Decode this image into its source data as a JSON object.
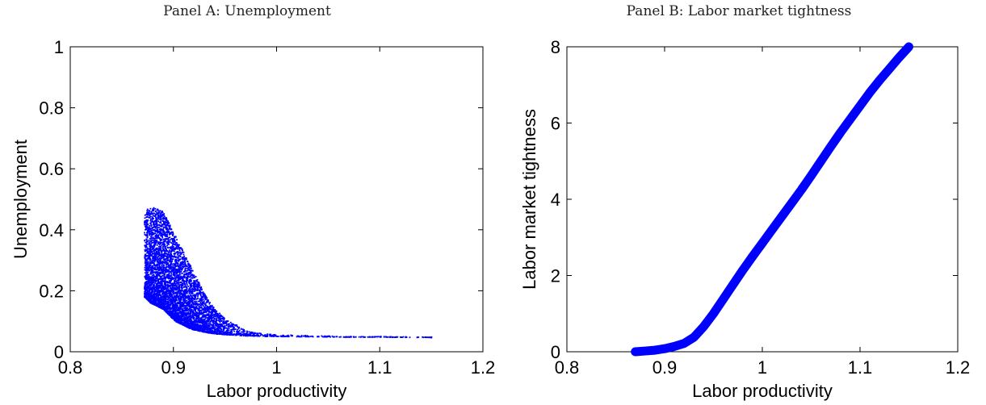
{
  "chart_data": [
    {
      "type": "scatter",
      "title": "Panel A: Unemployment",
      "xlabel": "Labor productivity",
      "ylabel": "Unemployment",
      "xlim": [
        0.8,
        1.2
      ],
      "ylim": [
        0,
        1
      ],
      "xticks": [
        "0.8",
        "0.9",
        "1",
        "1.1",
        "1.2"
      ],
      "yticks": [
        "0",
        "0.2",
        "0.4",
        "0.6",
        "0.8",
        "1"
      ],
      "color": "#0000ff",
      "grid": false,
      "series": [
        {
          "x": [
            0.872,
            0.875,
            0.878,
            0.881,
            0.884,
            0.887,
            0.89,
            0.893,
            0.896,
            0.899,
            0.902,
            0.905,
            0.908,
            0.911,
            0.914,
            0.917,
            0.92,
            0.923,
            0.926,
            0.929,
            0.932,
            0.935,
            0.938,
            0.941,
            0.944,
            0.947,
            0.95,
            0.955,
            0.96,
            0.965,
            0.97,
            0.975,
            0.98,
            0.99,
            1.0,
            1.02,
            1.04,
            1.06,
            1.08,
            1.1,
            1.12,
            1.15
          ],
          "y_low": [
            0.18,
            0.17,
            0.16,
            0.155,
            0.15,
            0.145,
            0.14,
            0.13,
            0.12,
            0.11,
            0.1,
            0.095,
            0.09,
            0.085,
            0.08,
            0.075,
            0.072,
            0.07,
            0.067,
            0.065,
            0.063,
            0.061,
            0.06,
            0.059,
            0.058,
            0.057,
            0.056,
            0.055,
            0.054,
            0.053,
            0.052,
            0.052,
            0.051,
            0.05,
            0.05,
            0.049,
            0.049,
            0.048,
            0.048,
            0.048,
            0.047,
            0.047
          ],
          "y_high": [
            0.46,
            0.47,
            0.47,
            0.475,
            0.47,
            0.465,
            0.46,
            0.44,
            0.42,
            0.4,
            0.38,
            0.36,
            0.34,
            0.32,
            0.3,
            0.28,
            0.26,
            0.24,
            0.22,
            0.2,
            0.18,
            0.165,
            0.15,
            0.14,
            0.13,
            0.12,
            0.11,
            0.1,
            0.09,
            0.08,
            0.072,
            0.066,
            0.062,
            0.058,
            0.056,
            0.054,
            0.052,
            0.051,
            0.05,
            0.05,
            0.049,
            0.048
          ]
        }
      ]
    },
    {
      "type": "line",
      "title": "Panel B: Labor market tightness",
      "xlabel": "Labor productivity",
      "ylabel": "Labor market tightness",
      "xlim": [
        0.8,
        1.2
      ],
      "ylim": [
        0,
        8
      ],
      "xticks": [
        "0.8",
        "0.9",
        "1",
        "1.1",
        "1.2"
      ],
      "yticks": [
        "0",
        "2",
        "4",
        "6",
        "8"
      ],
      "color": "#0000ff",
      "grid": false,
      "series": [
        {
          "x": [
            0.87,
            0.88,
            0.89,
            0.9,
            0.91,
            0.92,
            0.93,
            0.94,
            0.95,
            0.96,
            0.97,
            0.98,
            0.99,
            1.0,
            1.01,
            1.02,
            1.03,
            1.04,
            1.05,
            1.06,
            1.07,
            1.08,
            1.09,
            1.1,
            1.11,
            1.12,
            1.13,
            1.14,
            1.15
          ],
          "y": [
            0.0,
            0.02,
            0.04,
            0.08,
            0.14,
            0.22,
            0.38,
            0.66,
            1.0,
            1.38,
            1.76,
            2.14,
            2.5,
            2.85,
            3.2,
            3.55,
            3.9,
            4.25,
            4.62,
            5.0,
            5.38,
            5.75,
            6.1,
            6.45,
            6.8,
            7.12,
            7.42,
            7.72,
            8.0
          ]
        }
      ]
    }
  ]
}
